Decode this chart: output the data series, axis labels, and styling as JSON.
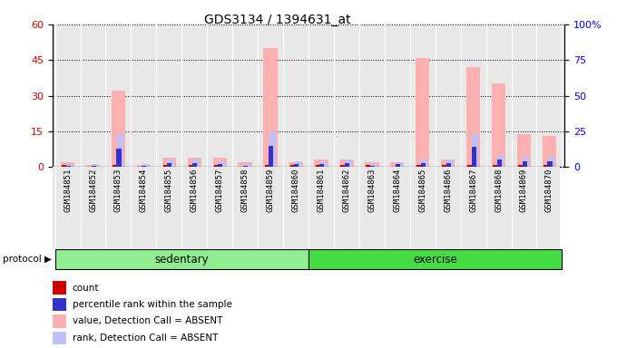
{
  "title": "GDS3134 / 1394631_at",
  "samples": [
    "GSM184851",
    "GSM184852",
    "GSM184853",
    "GSM184854",
    "GSM184855",
    "GSM184856",
    "GSM184857",
    "GSM184858",
    "GSM184859",
    "GSM184860",
    "GSM184861",
    "GSM184862",
    "GSM184863",
    "GSM184864",
    "GSM184865",
    "GSM184866",
    "GSM184867",
    "GSM184868",
    "GSM184869",
    "GSM184870"
  ],
  "count": [
    1,
    0,
    1,
    0,
    1,
    1,
    1,
    0,
    1,
    1,
    1,
    1,
    1,
    0,
    1,
    1,
    1,
    1,
    1,
    1
  ],
  "rank_pct": [
    1,
    1,
    13,
    1,
    3,
    3,
    2,
    1,
    15,
    2,
    2,
    3,
    1,
    2,
    3,
    3,
    14,
    5,
    4,
    4
  ],
  "value_absent": [
    2,
    1,
    32,
    1,
    4,
    4,
    4,
    2,
    50,
    2,
    3,
    3,
    2,
    2,
    46,
    3,
    42,
    35,
    14,
    13
  ],
  "rank_absent_pct": [
    2,
    2,
    23,
    2,
    5,
    6,
    4,
    2,
    25,
    4,
    4,
    5,
    2,
    3,
    5,
    5,
    23,
    8,
    7,
    7
  ],
  "sedentary_count": 10,
  "exercise_count": 10,
  "ylim_left": [
    0,
    60
  ],
  "ylim_right": [
    0,
    100
  ],
  "yticks_left": [
    0,
    15,
    30,
    45,
    60
  ],
  "yticks_right": [
    0,
    25,
    50,
    75,
    100
  ],
  "color_count": "#cc0000",
  "color_rank": "#3333cc",
  "color_value_absent": "#ffb0b0",
  "color_rank_absent": "#c0c0f8",
  "color_sedentary": "#90ee90",
  "color_exercise": "#44dd44",
  "chart_bg": "#e8e8e8",
  "group_labels": [
    "sedentary",
    "exercise"
  ],
  "protocol_label": "protocol"
}
